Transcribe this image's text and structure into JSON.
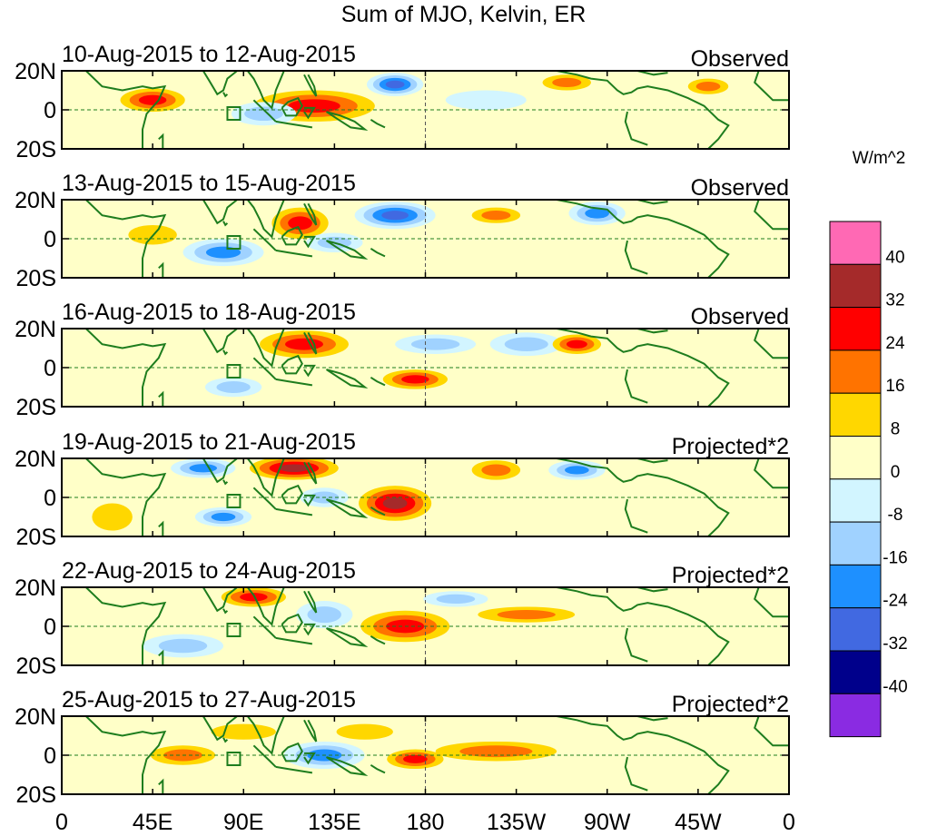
{
  "title": "Sum of MJO, Kelvin, ER",
  "units_label": "W/m^2",
  "lat_labels": [
    "20N",
    "0",
    "20S"
  ],
  "lon_labels": [
    "0",
    "45E",
    "90E",
    "135E",
    "180",
    "135W",
    "90W",
    "45W",
    "0"
  ],
  "panels": [
    {
      "date_range": "10-Aug-2015 to 12-Aug-2015",
      "type_label": "Observed"
    },
    {
      "date_range": "13-Aug-2015 to 15-Aug-2015",
      "type_label": "Observed"
    },
    {
      "date_range": "16-Aug-2015 to 18-Aug-2015",
      "type_label": "Observed"
    },
    {
      "date_range": "19-Aug-2015 to 21-Aug-2015",
      "type_label": "Projected*2"
    },
    {
      "date_range": "22-Aug-2015 to 24-Aug-2015",
      "type_label": "Projected*2"
    },
    {
      "date_range": "25-Aug-2015 to 27-Aug-2015",
      "type_label": "Projected*2"
    }
  ],
  "colorbar": {
    "levels": [
      "40",
      "32",
      "24",
      "16",
      "8",
      "0",
      "-8",
      "-16",
      "-24",
      "-32",
      "-40"
    ],
    "colors": [
      "#ff69b4",
      "#a52a2a",
      "#ff0000",
      "#ff7300",
      "#ffd700",
      "#ffffc8",
      "#d2f5ff",
      "#a0d2ff",
      "#1e90ff",
      "#4169e1",
      "#00008b",
      "#8a2be2"
    ]
  },
  "map_colors": {
    "coast": "#1e7d1e",
    "equator": "#1e7d1e",
    "background": "#ffffc8"
  },
  "anomalies": [
    [
      {
        "lon": 45,
        "lat": 5,
        "rx": 16,
        "ry": 6,
        "level": 3
      },
      {
        "lon": 125,
        "lat": 2,
        "rx": 30,
        "ry": 8,
        "level": 3
      },
      {
        "lon": 165,
        "lat": 13,
        "rx": 14,
        "ry": 6,
        "level": -4
      },
      {
        "lon": 100,
        "lat": -2,
        "rx": 16,
        "ry": 6,
        "level": -2
      },
      {
        "lon": 250,
        "lat": 14,
        "rx": 12,
        "ry": 4,
        "level": 2
      },
      {
        "lon": 320,
        "lat": 12,
        "rx": 10,
        "ry": 4,
        "level": 2
      },
      {
        "lon": 210,
        "lat": 5,
        "rx": 20,
        "ry": 5,
        "level": -1
      }
    ],
    [
      {
        "lon": 165,
        "lat": 12,
        "rx": 20,
        "ry": 7,
        "level": -4
      },
      {
        "lon": 80,
        "lat": -7,
        "rx": 20,
        "ry": 7,
        "level": -3
      },
      {
        "lon": 118,
        "lat": 8,
        "rx": 14,
        "ry": 8,
        "level": 3
      },
      {
        "lon": 135,
        "lat": -2,
        "rx": 14,
        "ry": 5,
        "level": -2
      },
      {
        "lon": 215,
        "lat": 12,
        "rx": 12,
        "ry": 4,
        "level": 2
      },
      {
        "lon": 265,
        "lat": 13,
        "rx": 14,
        "ry": 6,
        "level": -3
      },
      {
        "lon": 45,
        "lat": 2,
        "rx": 12,
        "ry": 5,
        "level": 1
      }
    ],
    [
      {
        "lon": 120,
        "lat": 12,
        "rx": 22,
        "ry": 7,
        "level": 3
      },
      {
        "lon": 175,
        "lat": -6,
        "rx": 16,
        "ry": 5,
        "level": 3
      },
      {
        "lon": 230,
        "lat": 12,
        "rx": 18,
        "ry": 6,
        "level": -2
      },
      {
        "lon": 255,
        "lat": 12,
        "rx": 12,
        "ry": 5,
        "level": 3
      },
      {
        "lon": 85,
        "lat": -10,
        "rx": 14,
        "ry": 5,
        "level": -2
      },
      {
        "lon": 185,
        "lat": 12,
        "rx": 20,
        "ry": 5,
        "level": -2
      }
    ],
    [
      {
        "lon": 165,
        "lat": -3,
        "rx": 18,
        "ry": 9,
        "level": 4
      },
      {
        "lon": 115,
        "lat": 15,
        "rx": 22,
        "ry": 6,
        "level": 4
      },
      {
        "lon": 70,
        "lat": 15,
        "rx": 16,
        "ry": 5,
        "level": -3
      },
      {
        "lon": 80,
        "lat": -10,
        "rx": 14,
        "ry": 5,
        "level": -3
      },
      {
        "lon": 255,
        "lat": 14,
        "rx": 14,
        "ry": 5,
        "level": -3
      },
      {
        "lon": 215,
        "lat": 14,
        "rx": 12,
        "ry": 5,
        "level": 2
      },
      {
        "lon": 130,
        "lat": 0,
        "rx": 12,
        "ry": 5,
        "level": -2
      },
      {
        "lon": 25,
        "lat": -10,
        "rx": 10,
        "ry": 7,
        "level": 1
      }
    ],
    [
      {
        "lon": 170,
        "lat": 0,
        "rx": 22,
        "ry": 8,
        "level": 3
      },
      {
        "lon": 230,
        "lat": 6,
        "rx": 24,
        "ry": 4,
        "level": 2
      },
      {
        "lon": 95,
        "lat": 15,
        "rx": 16,
        "ry": 5,
        "level": 3
      },
      {
        "lon": 130,
        "lat": 6,
        "rx": 14,
        "ry": 7,
        "level": -2
      },
      {
        "lon": 60,
        "lat": -10,
        "rx": 20,
        "ry": 6,
        "level": -2
      },
      {
        "lon": 195,
        "lat": 14,
        "rx": 16,
        "ry": 4,
        "level": -2
      }
    ],
    [
      {
        "lon": 130,
        "lat": 0,
        "rx": 20,
        "ry": 7,
        "level": -3
      },
      {
        "lon": 175,
        "lat": -2,
        "rx": 14,
        "ry": 5,
        "level": 3
      },
      {
        "lon": 215,
        "lat": 2,
        "rx": 30,
        "ry": 5,
        "level": 2
      },
      {
        "lon": 60,
        "lat": 0,
        "rx": 16,
        "ry": 5,
        "level": 2
      },
      {
        "lon": 90,
        "lat": 12,
        "rx": 16,
        "ry": 4,
        "level": 1
      },
      {
        "lon": 150,
        "lat": 12,
        "rx": 14,
        "ry": 4,
        "level": 1
      }
    ]
  ]
}
